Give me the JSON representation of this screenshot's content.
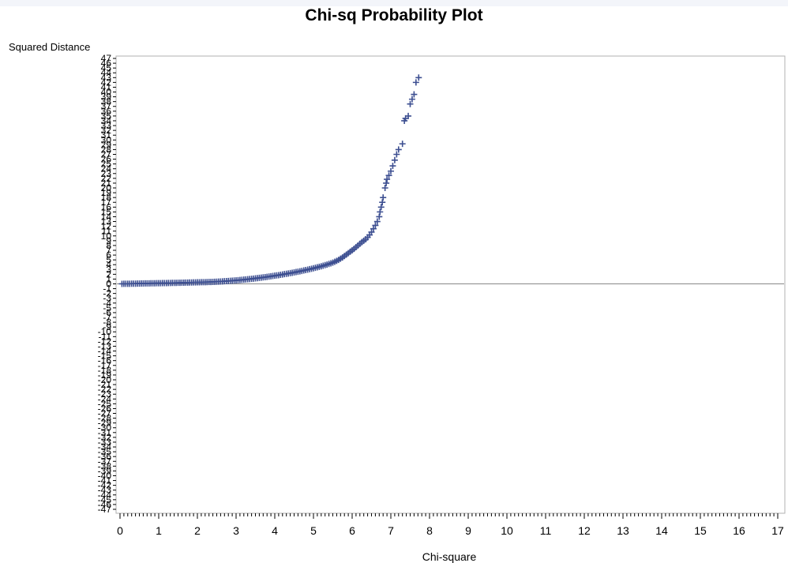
{
  "chart_data": {
    "type": "scatter",
    "title": "Chi-sq Probability Plot",
    "xlabel": "Chi-square",
    "ylabel": "Squared Distance",
    "xlim": [
      0,
      17
    ],
    "ylim": [
      -47,
      47
    ],
    "x_ticks": [
      0,
      1,
      2,
      3,
      4,
      5,
      6,
      7,
      8,
      9,
      10,
      11,
      12,
      13,
      14,
      15,
      16,
      17
    ],
    "y_ticks": [
      47,
      46,
      45,
      44,
      43,
      42,
      41,
      40,
      39,
      38,
      37,
      36,
      35,
      34,
      33,
      32,
      31,
      30,
      29,
      28,
      27,
      26,
      25,
      24,
      23,
      22,
      21,
      20,
      19,
      18,
      17,
      16,
      15,
      14,
      13,
      12,
      11,
      10,
      9,
      8,
      7,
      6,
      5,
      4,
      3,
      2,
      1,
      0,
      -1,
      -2,
      -3,
      -4,
      -5,
      -6,
      -7,
      -8,
      -9,
      -10,
      -11,
      -12,
      -13,
      -14,
      -15,
      -16,
      -17,
      -18,
      -19,
      -20,
      -21,
      -22,
      -23,
      -24,
      -25,
      -26,
      -27,
      -28,
      -29,
      -30,
      -31,
      -32,
      -33,
      -34,
      -35,
      -36,
      -37,
      -38,
      -39,
      -40,
      -41,
      -42,
      -43,
      -44,
      -45,
      -46,
      -47
    ],
    "reference_line_y": 0,
    "marker": "plus",
    "marker_color": "#3d4f91",
    "grid": false,
    "series": [
      {
        "points": [
          [
            0.05,
            0.01
          ],
          [
            0.1,
            0.02
          ],
          [
            0.15,
            0.02
          ],
          [
            0.2,
            0.03
          ],
          [
            0.25,
            0.03
          ],
          [
            0.3,
            0.04
          ],
          [
            0.35,
            0.05
          ],
          [
            0.4,
            0.05
          ],
          [
            0.45,
            0.06
          ],
          [
            0.5,
            0.07
          ],
          [
            0.55,
            0.08
          ],
          [
            0.6,
            0.09
          ],
          [
            0.65,
            0.1
          ],
          [
            0.7,
            0.1
          ],
          [
            0.75,
            0.11
          ],
          [
            0.8,
            0.12
          ],
          [
            0.85,
            0.13
          ],
          [
            0.9,
            0.13
          ],
          [
            0.95,
            0.14
          ],
          [
            1.0,
            0.15
          ],
          [
            1.05,
            0.15
          ],
          [
            1.1,
            0.16
          ],
          [
            1.15,
            0.17
          ],
          [
            1.2,
            0.17
          ],
          [
            1.25,
            0.18
          ],
          [
            1.3,
            0.19
          ],
          [
            1.35,
            0.2
          ],
          [
            1.4,
            0.2
          ],
          [
            1.45,
            0.21
          ],
          [
            1.5,
            0.22
          ],
          [
            1.55,
            0.23
          ],
          [
            1.6,
            0.24
          ],
          [
            1.65,
            0.25
          ],
          [
            1.7,
            0.26
          ],
          [
            1.75,
            0.27
          ],
          [
            1.8,
            0.28
          ],
          [
            1.85,
            0.29
          ],
          [
            1.9,
            0.3
          ],
          [
            1.95,
            0.31
          ],
          [
            2.0,
            0.32
          ],
          [
            2.05,
            0.33
          ],
          [
            2.1,
            0.34
          ],
          [
            2.15,
            0.35
          ],
          [
            2.2,
            0.36
          ],
          [
            2.25,
            0.38
          ],
          [
            2.3,
            0.39
          ],
          [
            2.35,
            0.4
          ],
          [
            2.4,
            0.42
          ],
          [
            2.45,
            0.44
          ],
          [
            2.5,
            0.46
          ],
          [
            2.55,
            0.48
          ],
          [
            2.6,
            0.5
          ],
          [
            2.65,
            0.52
          ],
          [
            2.7,
            0.55
          ],
          [
            2.75,
            0.58
          ],
          [
            2.8,
            0.6
          ],
          [
            2.85,
            0.63
          ],
          [
            2.9,
            0.66
          ],
          [
            2.95,
            0.7
          ],
          [
            3.0,
            0.73
          ],
          [
            3.05,
            0.77
          ],
          [
            3.1,
            0.8
          ],
          [
            3.15,
            0.84
          ],
          [
            3.2,
            0.88
          ],
          [
            3.25,
            0.92
          ],
          [
            3.3,
            0.96
          ],
          [
            3.35,
            1.0
          ],
          [
            3.4,
            1.05
          ],
          [
            3.45,
            1.1
          ],
          [
            3.5,
            1.15
          ],
          [
            3.55,
            1.2
          ],
          [
            3.6,
            1.25
          ],
          [
            3.65,
            1.3
          ],
          [
            3.7,
            1.35
          ],
          [
            3.75,
            1.4
          ],
          [
            3.8,
            1.46
          ],
          [
            3.85,
            1.52
          ],
          [
            3.9,
            1.58
          ],
          [
            3.95,
            1.64
          ],
          [
            4.0,
            1.7
          ],
          [
            4.05,
            1.76
          ],
          [
            4.1,
            1.82
          ],
          [
            4.15,
            1.89
          ],
          [
            4.2,
            1.96
          ],
          [
            4.25,
            2.03
          ],
          [
            4.3,
            2.1
          ],
          [
            4.35,
            2.17
          ],
          [
            4.4,
            2.24
          ],
          [
            4.45,
            2.31
          ],
          [
            4.5,
            2.38
          ],
          [
            4.55,
            2.46
          ],
          [
            4.6,
            2.54
          ],
          [
            4.65,
            2.62
          ],
          [
            4.7,
            2.7
          ],
          [
            4.75,
            2.79
          ],
          [
            4.8,
            2.88
          ],
          [
            4.85,
            2.97
          ],
          [
            4.9,
            3.06
          ],
          [
            4.95,
            3.15
          ],
          [
            5.0,
            3.25
          ],
          [
            5.05,
            3.35
          ],
          [
            5.1,
            3.45
          ],
          [
            5.15,
            3.56
          ],
          [
            5.2,
            3.67
          ],
          [
            5.25,
            3.78
          ],
          [
            5.3,
            3.9
          ],
          [
            5.35,
            4.02
          ],
          [
            5.4,
            4.15
          ],
          [
            5.45,
            4.28
          ],
          [
            5.5,
            4.42
          ],
          [
            5.55,
            4.6
          ],
          [
            5.6,
            4.8
          ],
          [
            5.65,
            5.0
          ],
          [
            5.7,
            5.25
          ],
          [
            5.75,
            5.5
          ],
          [
            5.8,
            5.8
          ],
          [
            5.85,
            6.1
          ],
          [
            5.9,
            6.4
          ],
          [
            5.95,
            6.7
          ],
          [
            6.0,
            7.0
          ],
          [
            6.05,
            7.3
          ],
          [
            6.1,
            7.65
          ],
          [
            6.15,
            8.0
          ],
          [
            6.2,
            8.35
          ],
          [
            6.25,
            8.7
          ],
          [
            6.3,
            9.0
          ],
          [
            6.35,
            9.3
          ],
          [
            6.4,
            9.7
          ],
          [
            6.45,
            10.2
          ],
          [
            6.5,
            10.8
          ],
          [
            6.55,
            11.5
          ],
          [
            6.6,
            12.2
          ],
          [
            6.65,
            13.0
          ],
          [
            6.7,
            14.0
          ],
          [
            6.72,
            15.0
          ],
          [
            6.75,
            16.0
          ],
          [
            6.78,
            17.0
          ],
          [
            6.8,
            18.0
          ],
          [
            6.85,
            20.0
          ],
          [
            6.88,
            21.0
          ],
          [
            6.9,
            21.8
          ],
          [
            6.95,
            22.6
          ],
          [
            7.0,
            23.5
          ],
          [
            7.05,
            24.6
          ],
          [
            7.1,
            25.8
          ],
          [
            7.15,
            27.0
          ],
          [
            7.2,
            28.0
          ],
          [
            7.3,
            29.2
          ],
          [
            7.35,
            34.0
          ],
          [
            7.38,
            34.5
          ],
          [
            7.45,
            35.0
          ],
          [
            7.5,
            37.5
          ],
          [
            7.55,
            38.5
          ],
          [
            7.6,
            39.5
          ],
          [
            7.65,
            42.0
          ],
          [
            7.72,
            43.0
          ]
        ]
      }
    ]
  }
}
